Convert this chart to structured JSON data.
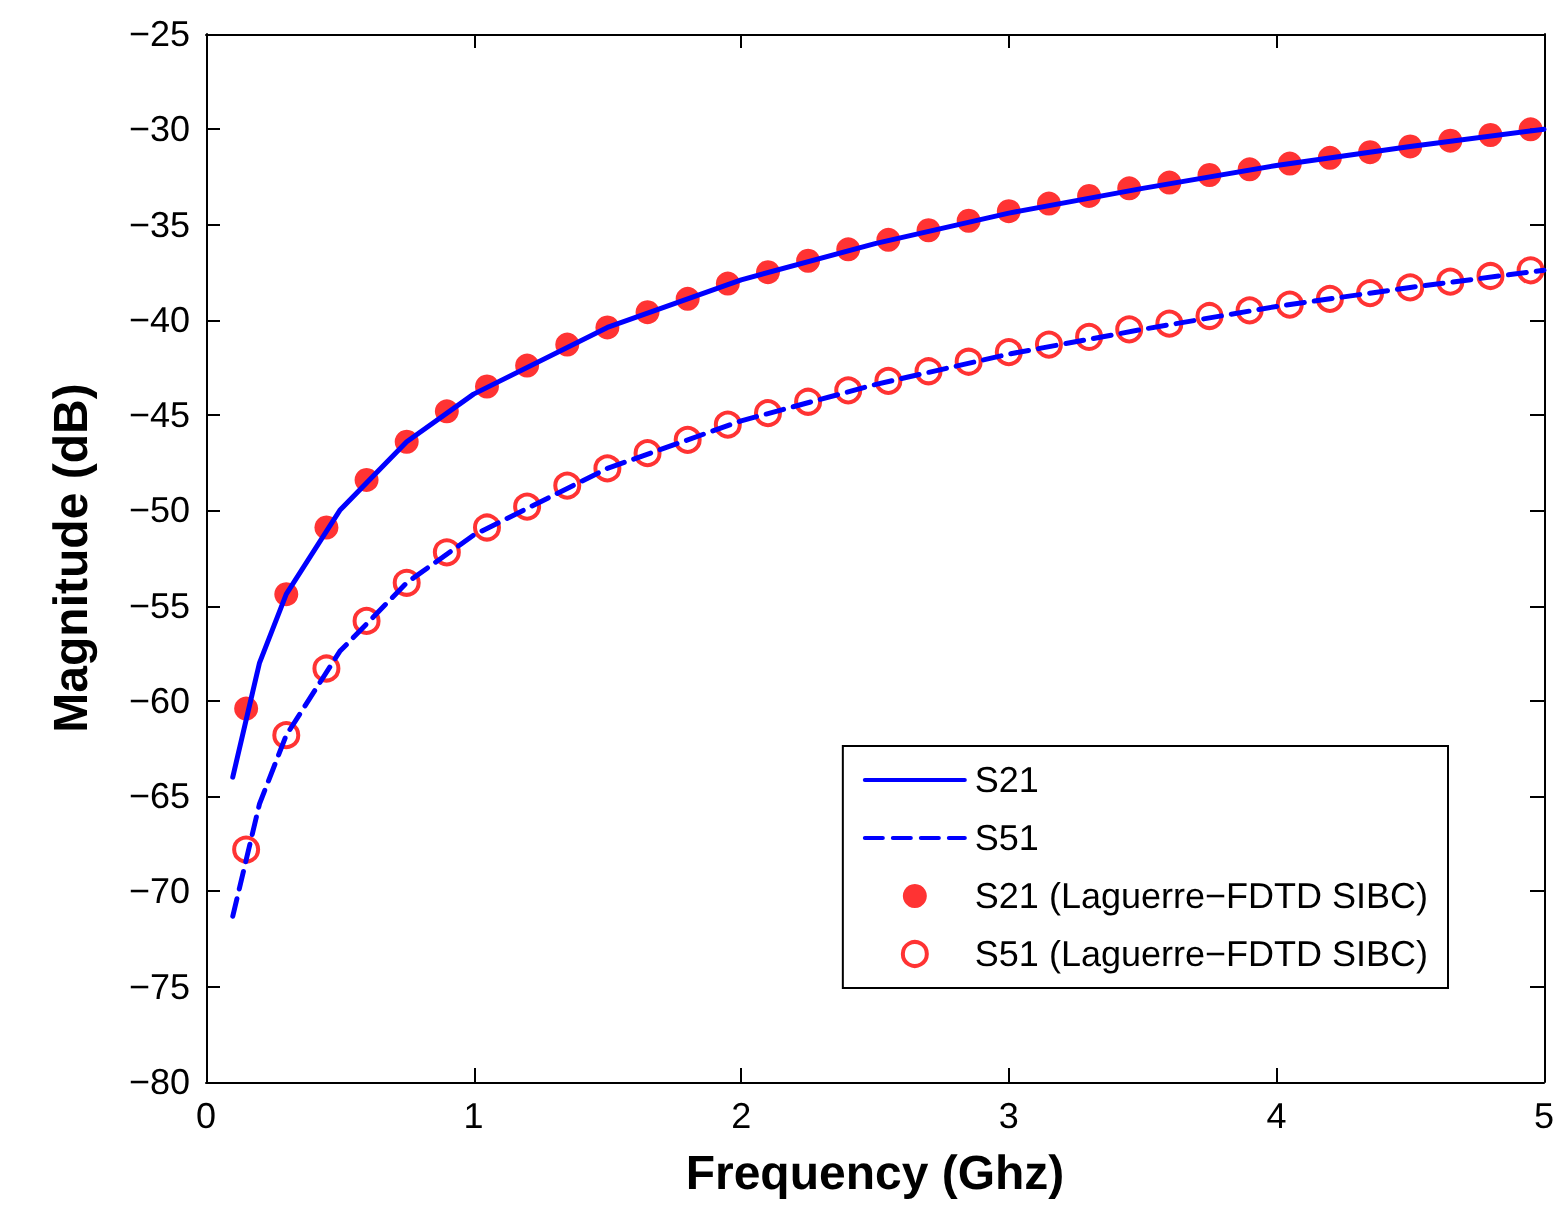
{
  "chart_data": {
    "type": "line",
    "xlabel": "Frequency (Ghz)",
    "ylabel": "Magnitude (dB)",
    "xlim": [
      0,
      5
    ],
    "xticks": [
      0,
      1,
      2,
      3,
      4,
      5
    ],
    "ylim": [
      -80,
      -25
    ],
    "yticks": [
      -80,
      -75,
      -70,
      -65,
      -60,
      -55,
      -50,
      -45,
      -40,
      -35,
      -30,
      -25
    ],
    "grid": false,
    "legend": "bottom right",
    "series": [
      {
        "name": "S21",
        "color": "#0000ff",
        "line_style": "solid",
        "marker": "none",
        "x": [
          0.1,
          0.2,
          0.3,
          0.5,
          0.75,
          1,
          1.5,
          2,
          2.5,
          3,
          3.5,
          4,
          4.5,
          5
        ],
        "values": [
          -64,
          -58,
          -54.4,
          -50,
          -46.4,
          -43.9,
          -40.4,
          -37.9,
          -36.0,
          -34.4,
          -33.1,
          -31.9,
          -30.9,
          -30.0
        ]
      },
      {
        "name": "S51",
        "color": "#0000ff",
        "line_style": "dashed",
        "marker": "none",
        "x": [
          0.1,
          0.2,
          0.3,
          0.5,
          0.75,
          1,
          1.5,
          2,
          2.5,
          3,
          3.5,
          4,
          4.5,
          5
        ],
        "values": [
          -71.3,
          -65.4,
          -61.8,
          -57.4,
          -53.8,
          -51.3,
          -47.8,
          -45.3,
          -43.4,
          -41.8,
          -40.5,
          -39.3,
          -38.3,
          -37.4
        ]
      },
      {
        "name": "S21 (Laguerre−FDTD SIBC)",
        "type": "scatter",
        "color": "#ff0000",
        "marker": "circle",
        "x": [
          0.15,
          0.3,
          0.45,
          0.6,
          0.75,
          0.9,
          1.05,
          1.2,
          1.35,
          1.5,
          1.65,
          1.8,
          1.95,
          2.1,
          2.25,
          2.4,
          2.55,
          2.7,
          2.85,
          3.0,
          3.15,
          3.3,
          3.45,
          3.6,
          3.75,
          3.9,
          4.05,
          4.2,
          4.35,
          4.5,
          4.65,
          4.8,
          4.95
        ],
        "values": [
          -60.4,
          -54.4,
          -50.9,
          -48.4,
          -46.4,
          -44.8,
          -43.5,
          -42.4,
          -41.3,
          -40.4,
          -39.6,
          -38.9,
          -38.1,
          -37.5,
          -36.9,
          -36.3,
          -35.8,
          -35.3,
          -34.8,
          -34.3,
          -33.9,
          -33.5,
          -33.1,
          -32.8,
          -32.4,
          -32.1,
          -31.8,
          -31.5,
          -31.2,
          -30.9,
          -30.6,
          -30.3,
          -30.0
        ]
      },
      {
        "name": "S51 (Laguerre−FDTD SIBC)",
        "type": "scatter",
        "color": "#ff0000",
        "marker": "open circle",
        "x": [
          0.15,
          0.3,
          0.45,
          0.6,
          0.75,
          0.9,
          1.05,
          1.2,
          1.35,
          1.5,
          1.65,
          1.8,
          1.95,
          2.1,
          2.25,
          2.4,
          2.55,
          2.7,
          2.85,
          3.0,
          3.15,
          3.3,
          3.45,
          3.6,
          3.75,
          3.9,
          4.05,
          4.2,
          4.35,
          4.5,
          4.65,
          4.8,
          4.95
        ],
        "values": [
          -67.8,
          -61.8,
          -58.3,
          -55.8,
          -53.8,
          -52.2,
          -50.9,
          -49.8,
          -48.7,
          -47.8,
          -47.0,
          -46.3,
          -45.5,
          -44.9,
          -44.3,
          -43.7,
          -43.2,
          -42.7,
          -42.2,
          -41.7,
          -41.3,
          -40.9,
          -40.5,
          -40.2,
          -39.8,
          -39.5,
          -39.2,
          -38.9,
          -38.6,
          -38.3,
          -38.0,
          -37.7,
          -37.4
        ]
      }
    ]
  }
}
